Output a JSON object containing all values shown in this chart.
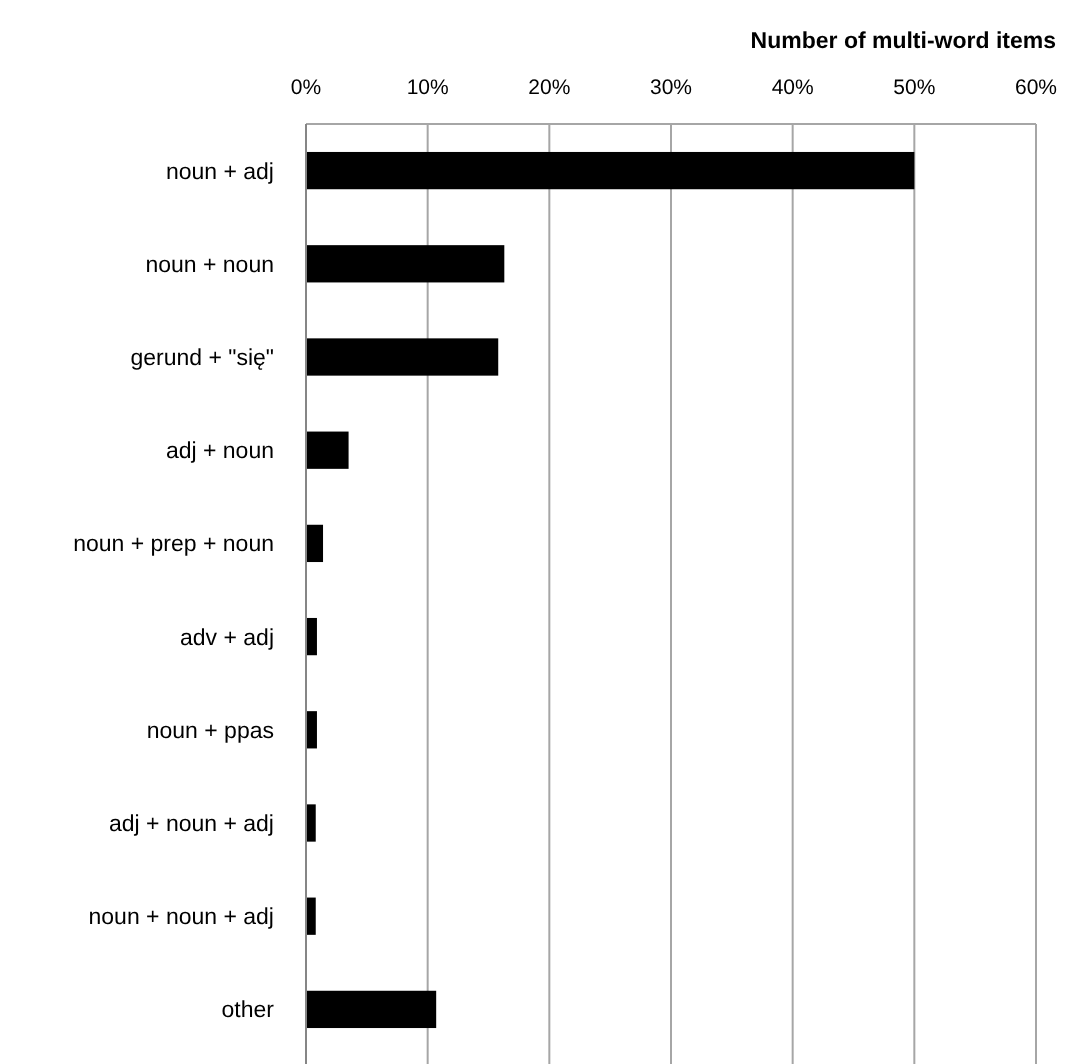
{
  "chart_data": {
    "type": "bar",
    "orientation": "horizontal",
    "title": "Number of multi-word items",
    "categories": [
      "noun + adj",
      "noun + noun",
      "gerund + \"się\"",
      "adj + noun",
      "noun + prep + noun",
      "adv + adj",
      "noun + ppas",
      "adj + noun + adj",
      "noun + noun + adj",
      "other"
    ],
    "values": [
      50,
      16.3,
      15.8,
      3.5,
      1.4,
      0.9,
      0.9,
      0.8,
      0.8,
      10.7
    ],
    "color": "#000000",
    "xlim": [
      0,
      60
    ],
    "xticks": [
      {
        "value": 0,
        "label": "0%"
      },
      {
        "value": 10,
        "label": "10%"
      },
      {
        "value": 20,
        "label": "20%"
      },
      {
        "value": 30,
        "label": "30%"
      },
      {
        "value": 40,
        "label": "40%"
      },
      {
        "value": 50,
        "label": "50%"
      },
      {
        "value": 60,
        "label": "60%"
      }
    ],
    "grid": "x"
  }
}
